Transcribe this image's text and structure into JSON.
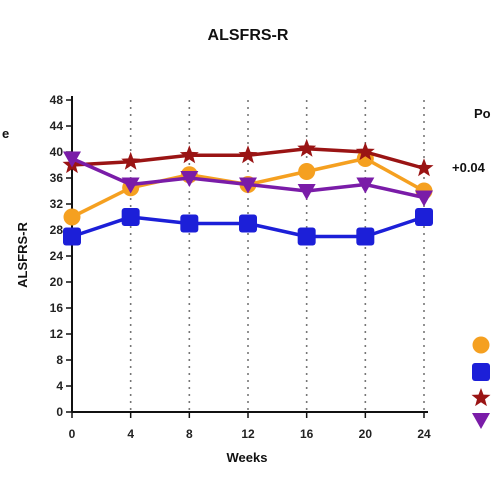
{
  "chart_data": {
    "type": "line",
    "title": "ALSFRS-R",
    "xlabel": "Weeks",
    "ylabel": "ALSFRS-R",
    "xticks": [
      0,
      4,
      8,
      12,
      16,
      20,
      24
    ],
    "yticks": [
      0,
      4,
      8,
      12,
      16,
      20,
      24,
      28,
      32,
      36,
      40,
      44,
      48
    ],
    "xlim": [
      0,
      24
    ],
    "ylim": [
      0,
      48
    ],
    "x": [
      0,
      4,
      8,
      12,
      16,
      20,
      24
    ],
    "grid": "vertical dotted",
    "legend": "right (cropped)",
    "right_text": [
      "Po",
      "+0.04"
    ],
    "left_text": "e",
    "series": [
      {
        "marker": "circle",
        "color": "#f5a020",
        "values": [
          30,
          34.5,
          36.5,
          35,
          37,
          39,
          34
        ]
      },
      {
        "marker": "square",
        "color": "#1c1fd8",
        "values": [
          27,
          30,
          29,
          29,
          27,
          27,
          30
        ]
      },
      {
        "marker": "star",
        "color": "#9a1414",
        "values": [
          38,
          38.5,
          39.5,
          39.5,
          40.5,
          40,
          37.5
        ]
      },
      {
        "marker": "triangle-down",
        "color": "#7a1ca8",
        "values": [
          39,
          35,
          36,
          35,
          34,
          35,
          33
        ]
      }
    ]
  }
}
